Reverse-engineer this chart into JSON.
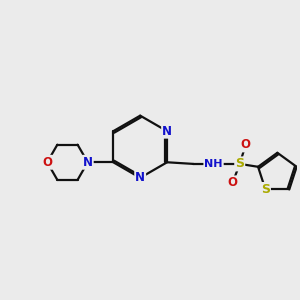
{
  "bg": "#ebebeb",
  "bond_color": "#111111",
  "lw": 1.6,
  "dbo": 0.055,
  "fs": 8.5,
  "colors": {
    "N": "#1111cc",
    "O": "#cc1111",
    "S": "#aaaa00",
    "H": "#444444"
  },
  "figsize": [
    3.0,
    3.0
  ],
  "dpi": 100,
  "xlim": [
    0.5,
    9.5
  ],
  "ylim": [
    2.5,
    8.5
  ]
}
